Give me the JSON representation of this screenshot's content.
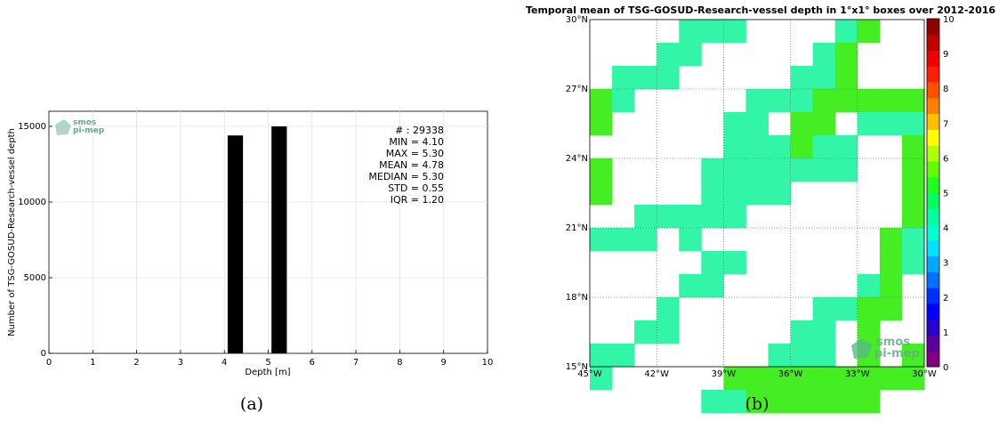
{
  "chart_data": [
    {
      "type": "bar",
      "panel_label": "(a)",
      "xlabel": "Depth [m]",
      "ylabel": "Number of TSG-GOSUD-Research-vessel depth",
      "xlim": [
        0,
        10
      ],
      "ylim": [
        0,
        16000
      ],
      "xticks": [
        0,
        1,
        2,
        3,
        4,
        5,
        6,
        7,
        8,
        9,
        10
      ],
      "yticks": [
        0,
        5000,
        10000,
        15000
      ],
      "grid": true,
      "bar_width": 0.35,
      "x": [
        4.25,
        5.25
      ],
      "values": [
        14400,
        15000
      ],
      "bar_color": "#000000",
      "stats": [
        "# : 29338",
        "MIN = 4.10",
        "MAX =  5.30",
        "MEAN = 4.78",
        "MEDIAN = 5.30",
        "STD = 0.55",
        "IQR = 1.20"
      ],
      "logo": [
        "smos",
        "pi-mep"
      ]
    },
    {
      "type": "heatmap",
      "panel_label": "(b)",
      "title": "Temporal mean of TSG-GOSUD-Research-vessel depth in 1°x1° boxes over 2012-2016",
      "lon_range": [
        -45,
        -30
      ],
      "lat_range": [
        15,
        30
      ],
      "xtick_labels": [
        "45°W",
        "42°W",
        "39°W",
        "36°W",
        "33°W",
        "30°W"
      ],
      "ytick_labels": [
        "15°N",
        "18°N",
        "21°N",
        "24°N",
        "27°N",
        "30°N"
      ],
      "grid": true,
      "colorbar": {
        "min": 0,
        "max": 10,
        "ticks": [
          "0",
          "1",
          "2",
          "3",
          "4",
          "5",
          "6",
          "7",
          "8",
          "9",
          "10"
        ]
      },
      "colors": {
        "low": "#33f5a8",
        "high": "#44ee22"
      },
      "cells_lat_lon_value": [
        [
          29,
          -41,
          4.1
        ],
        [
          29,
          -40,
          4.1
        ],
        [
          29,
          -39,
          4.1
        ],
        [
          29,
          -34,
          4.1
        ],
        [
          29,
          -33,
          5.3
        ],
        [
          28,
          -42,
          4.1
        ],
        [
          28,
          -41,
          4.1
        ],
        [
          28,
          -35,
          4.1
        ],
        [
          28,
          -34,
          5.3
        ],
        [
          27,
          -44,
          4.1
        ],
        [
          27,
          -43,
          4.1
        ],
        [
          27,
          -42,
          4.1
        ],
        [
          27,
          -36,
          4.1
        ],
        [
          27,
          -35,
          4.1
        ],
        [
          27,
          -34,
          5.3
        ],
        [
          26,
          -45,
          5.3
        ],
        [
          26,
          -44,
          4.1
        ],
        [
          26,
          -38,
          4.1
        ],
        [
          26,
          -37,
          4.1
        ],
        [
          26,
          -36,
          4.1
        ],
        [
          26,
          -35,
          5.3
        ],
        [
          26,
          -34,
          5.3
        ],
        [
          26,
          -33,
          5.3
        ],
        [
          26,
          -32,
          5.3
        ],
        [
          26,
          -31,
          5.3
        ],
        [
          25,
          -45,
          5.3
        ],
        [
          25,
          -39,
          4.1
        ],
        [
          25,
          -38,
          4.1
        ],
        [
          25,
          -36,
          5.3
        ],
        [
          25,
          -35,
          5.3
        ],
        [
          25,
          -33,
          4.1
        ],
        [
          25,
          -32,
          4.1
        ],
        [
          25,
          -31,
          4.1
        ],
        [
          24,
          -39,
          4.1
        ],
        [
          24,
          -38,
          4.1
        ],
        [
          24,
          -37,
          4.1
        ],
        [
          24,
          -36,
          5.3
        ],
        [
          24,
          -35,
          4.1
        ],
        [
          24,
          -34,
          4.1
        ],
        [
          24,
          -31,
          5.3
        ],
        [
          23,
          -45,
          5.3
        ],
        [
          23,
          -40,
          4.1
        ],
        [
          23,
          -39,
          4.1
        ],
        [
          23,
          -38,
          4.1
        ],
        [
          23,
          -37,
          4.1
        ],
        [
          23,
          -36,
          4.1
        ],
        [
          23,
          -35,
          4.1
        ],
        [
          23,
          -34,
          4.1
        ],
        [
          23,
          -31,
          5.3
        ],
        [
          22,
          -45,
          5.3
        ],
        [
          22,
          -40,
          4.1
        ],
        [
          22,
          -39,
          4.1
        ],
        [
          22,
          -38,
          4.1
        ],
        [
          22,
          -37,
          4.1
        ],
        [
          22,
          -31,
          5.3
        ],
        [
          21,
          -43,
          4.1
        ],
        [
          21,
          -42,
          4.1
        ],
        [
          21,
          -41,
          4.1
        ],
        [
          21,
          -40,
          4.1
        ],
        [
          21,
          -39,
          4.1
        ],
        [
          21,
          -31,
          5.3
        ],
        [
          20,
          -45,
          4.1
        ],
        [
          20,
          -44,
          4.1
        ],
        [
          20,
          -43,
          4.1
        ],
        [
          20,
          -41,
          4.1
        ],
        [
          20,
          -32,
          5.3
        ],
        [
          20,
          -31,
          4.1
        ],
        [
          19,
          -40,
          4.1
        ],
        [
          19,
          -39,
          4.1
        ],
        [
          19,
          -32,
          5.3
        ],
        [
          19,
          -31,
          4.1
        ],
        [
          18,
          -41,
          4.1
        ],
        [
          18,
          -40,
          4.1
        ],
        [
          18,
          -33,
          4.1
        ],
        [
          18,
          -32,
          5.3
        ],
        [
          17,
          -42,
          4.1
        ],
        [
          17,
          -35,
          4.1
        ],
        [
          17,
          -34,
          4.1
        ],
        [
          17,
          -33,
          5.3
        ],
        [
          17,
          -32,
          5.3
        ],
        [
          16,
          -43,
          4.1
        ],
        [
          16,
          -42,
          4.1
        ],
        [
          16,
          -36,
          4.1
        ],
        [
          16,
          -35,
          4.1
        ],
        [
          16,
          -33,
          5.3
        ],
        [
          15,
          -45,
          4.1
        ],
        [
          15,
          -44,
          4.1
        ],
        [
          15,
          -37,
          4.1
        ],
        [
          15,
          -36,
          4.1
        ],
        [
          15,
          -35,
          4.1
        ],
        [
          15,
          -33,
          5.3
        ],
        [
          15,
          -31,
          5.3
        ],
        [
          14,
          -45,
          4.1
        ],
        [
          14,
          -39,
          5.3
        ],
        [
          14,
          -38,
          5.3
        ],
        [
          14,
          -37,
          5.3
        ],
        [
          14,
          -36,
          5.3
        ],
        [
          14,
          -35,
          5.3
        ],
        [
          14,
          -34,
          5.3
        ],
        [
          14,
          -33,
          5.3
        ],
        [
          14,
          -32,
          5.3
        ],
        [
          14,
          -31,
          5.3
        ],
        [
          13,
          -40,
          4.1
        ],
        [
          13,
          -39,
          4.1
        ],
        [
          13,
          -38,
          5.3
        ],
        [
          13,
          -37,
          5.3
        ],
        [
          13,
          -36,
          5.3
        ],
        [
          13,
          -35,
          5.3
        ],
        [
          13,
          -34,
          5.3
        ],
        [
          13,
          -33,
          5.3
        ]
      ],
      "logo": [
        "smos",
        "pi-mep"
      ]
    }
  ]
}
